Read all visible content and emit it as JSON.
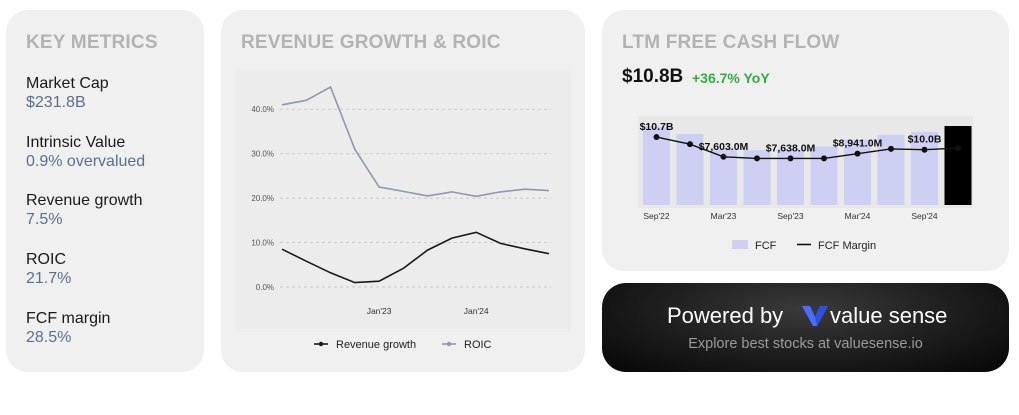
{
  "metrics": {
    "title": "KEY METRICS",
    "items": [
      {
        "label": "Market Cap",
        "value": "$231.8B"
      },
      {
        "label": "Intrinsic Value",
        "value": "0.9% overvalued"
      },
      {
        "label": "Revenue growth",
        "value": "7.5%"
      },
      {
        "label": "ROIC",
        "value": "21.7%"
      },
      {
        "label": "FCF margin",
        "value": "28.5%"
      }
    ]
  },
  "revenue": {
    "title": "REVENUE GROWTH & ROIC"
  },
  "fcf": {
    "title": "LTM FREE CASH FLOW",
    "value": "$10.8B",
    "change": "+36.7% YoY"
  },
  "banner": {
    "powered": "Powered by",
    "brand": "value sense",
    "tagline": "Explore best stocks at valuesense.io"
  },
  "colors": {
    "roic": "#8e99ad",
    "revenue_growth": "#1a1a1a",
    "fcf_bar": "#cdd0f3",
    "fcf_bar_latest": "#000000",
    "yoy_positive": "#2fae3f"
  },
  "chart_data": [
    {
      "type": "line",
      "title": "REVENUE GROWTH & ROIC",
      "ylim": [
        0,
        45
      ],
      "yticks": [
        "0.0%",
        "10.0%",
        "20.0%",
        "30.0%",
        "40.0%"
      ],
      "xtick_labels": [
        {
          "index": 4,
          "label": "Jan'23"
        },
        {
          "index": 8,
          "label": "Jan'24"
        }
      ],
      "grid": true,
      "legend_position": "bottom",
      "series": [
        {
          "name": "Revenue growth",
          "values": [
            8.5,
            5.8,
            3.2,
            1.0,
            1.3,
            4.2,
            8.3,
            11.0,
            12.3,
            9.8,
            8.6,
            7.5
          ]
        },
        {
          "name": "ROIC",
          "values": [
            41.0,
            42.0,
            45.0,
            31.0,
            22.5,
            21.5,
            20.5,
            21.4,
            20.4,
            21.4,
            22.0,
            21.7
          ]
        }
      ]
    },
    {
      "type": "bar",
      "title": "LTM FREE CASH FLOW",
      "legend_position": "bottom",
      "xtick_labels": [
        {
          "index": 0,
          "label": "Sep'22"
        },
        {
          "index": 2,
          "label": "Mar'23"
        },
        {
          "index": 4,
          "label": "Sep'23"
        },
        {
          "index": 6,
          "label": "Mar'24"
        },
        {
          "index": 8,
          "label": "Sep'24"
        }
      ],
      "data_labels": [
        {
          "index": 0,
          "text": "$10.7B"
        },
        {
          "index": 2,
          "text": "$7,603.0M"
        },
        {
          "index": 4,
          "text": "$7,638.0M"
        },
        {
          "index": 6,
          "text": "$8,941.0M"
        },
        {
          "index": 8,
          "text": "$10.0B"
        }
      ],
      "series": [
        {
          "name": "FCF",
          "unit": "$B",
          "values": [
            10.7,
            9.7,
            7.6,
            7.5,
            7.64,
            8.0,
            8.94,
            9.6,
            10.0,
            10.8
          ]
        },
        {
          "name": "FCF Margin",
          "unit": "relative",
          "values": [
            0.86,
            0.77,
            0.61,
            0.59,
            0.59,
            0.59,
            0.65,
            0.71,
            0.7,
            0.72
          ]
        }
      ]
    }
  ]
}
